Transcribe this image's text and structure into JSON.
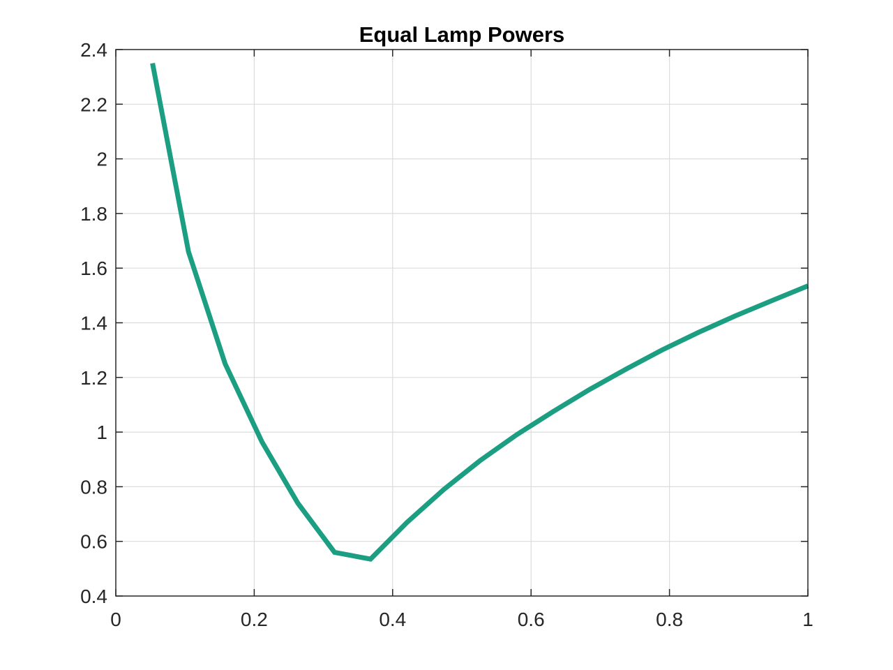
{
  "chart_data": {
    "type": "line",
    "title": "Equal Lamp Powers",
    "xlabel": "",
    "ylabel": "",
    "xlim": [
      0,
      1
    ],
    "ylim": [
      0.4,
      2.4
    ],
    "xticks": [
      0,
      0.2,
      0.4,
      0.6,
      0.8,
      1
    ],
    "xtick_labels": [
      "0",
      "0.2",
      "0.4",
      "0.6",
      "0.8",
      "1"
    ],
    "yticks": [
      0.4,
      0.6,
      0.8,
      1,
      1.2,
      1.4,
      1.6,
      1.8,
      2,
      2.2,
      2.4
    ],
    "ytick_labels": [
      "0.4",
      "0.6",
      "0.8",
      "1",
      "1.2",
      "1.4",
      "1.6",
      "1.8",
      "2",
      "2.2",
      "2.4"
    ],
    "grid": true,
    "series": [
      {
        "color": "#1b9e82",
        "x": [
          0.053,
          0.105,
          0.158,
          0.211,
          0.263,
          0.316,
          0.368,
          0.421,
          0.474,
          0.526,
          0.579,
          0.632,
          0.684,
          0.737,
          0.789,
          0.842,
          0.895,
          0.947,
          1.0
        ],
        "y": [
          2.35,
          1.66,
          1.25,
          0.965,
          0.74,
          0.56,
          0.535,
          0.67,
          0.79,
          0.895,
          0.99,
          1.075,
          1.155,
          1.23,
          1.3,
          1.365,
          1.425,
          1.48,
          1.535
        ]
      }
    ]
  }
}
